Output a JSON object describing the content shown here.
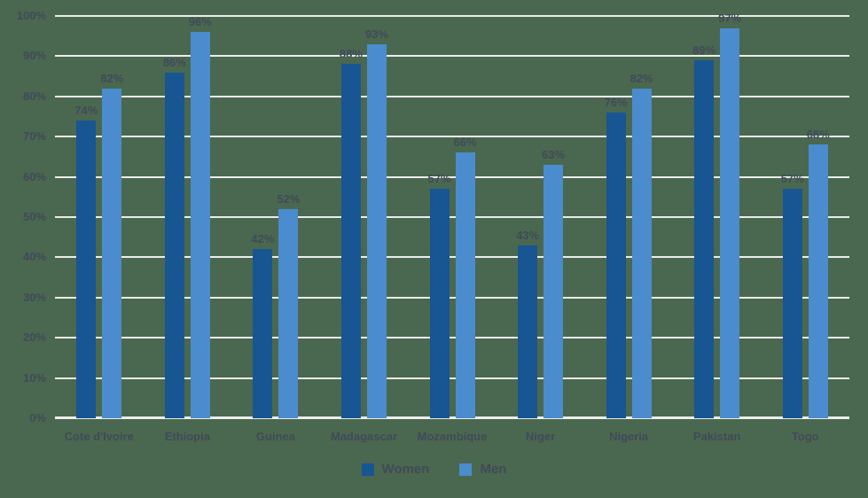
{
  "chart_data": {
    "type": "bar",
    "title": "",
    "xlabel": "",
    "ylabel": "",
    "categories": [
      "Cote d'Ivoire",
      "Ethiopia",
      "Guinea",
      "Madagascar",
      "Mozambique",
      "Niger",
      "Nigeria",
      "Pakistan",
      "Togo"
    ],
    "series": [
      {
        "name": "Women",
        "color": "#175593",
        "values": [
          74,
          86,
          42,
          88,
          57,
          43,
          76,
          89,
          57
        ],
        "value_labels": [
          "74%",
          "86%",
          "42%",
          "88%",
          "57%",
          "43%",
          "76%",
          "89%",
          "57%"
        ]
      },
      {
        "name": "Men",
        "color": "#4A8CCD",
        "values": [
          82,
          96,
          52,
          93,
          66,
          63,
          82,
          97,
          68
        ],
        "value_labels": [
          "82%",
          "96%",
          "52%",
          "93%",
          "66%",
          "63%",
          "82%",
          "97%",
          "68%"
        ]
      }
    ],
    "y_axis": {
      "min": 0,
      "max": 100,
      "step": 10,
      "tick_labels": [
        "0%",
        "10%",
        "20%",
        "30%",
        "40%",
        "50%",
        "60%",
        "70%",
        "80%",
        "90%",
        "100%"
      ]
    },
    "grid": true,
    "legend": {
      "position": "bottom",
      "items": [
        "Women",
        "Men"
      ]
    }
  },
  "style": {
    "background": "#4A684F",
    "gridline_color": "#EBEDEB",
    "text_color": "#414A59"
  }
}
